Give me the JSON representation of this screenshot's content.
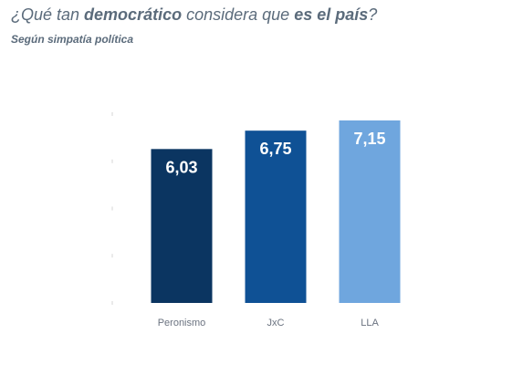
{
  "header": {
    "title_parts": [
      {
        "text": "¿Qué tan ",
        "bold": false
      },
      {
        "text": "democrático",
        "bold": true
      },
      {
        "text": " considera que ",
        "bold": false
      },
      {
        "text": "es el país",
        "bold": true
      },
      {
        "text": "?",
        "bold": false
      }
    ],
    "subtitle": "Según simpatía política"
  },
  "chart_data": {
    "type": "bar",
    "title": "¿Qué tan democrático considera que es el país?",
    "subtitle": "Según simpatía política",
    "categories": [
      "Peronismo",
      "JxC",
      "LLA"
    ],
    "values": [
      6.03,
      6.75,
      7.15
    ],
    "value_labels": [
      "6,03",
      "6,75",
      "7,15"
    ],
    "colors": [
      "#0b3561",
      "#0f5195",
      "#6fa6de"
    ],
    "xlabel": "",
    "ylabel": "",
    "ylim": [
      0,
      7.4
    ],
    "grid": false,
    "legend": "none"
  }
}
